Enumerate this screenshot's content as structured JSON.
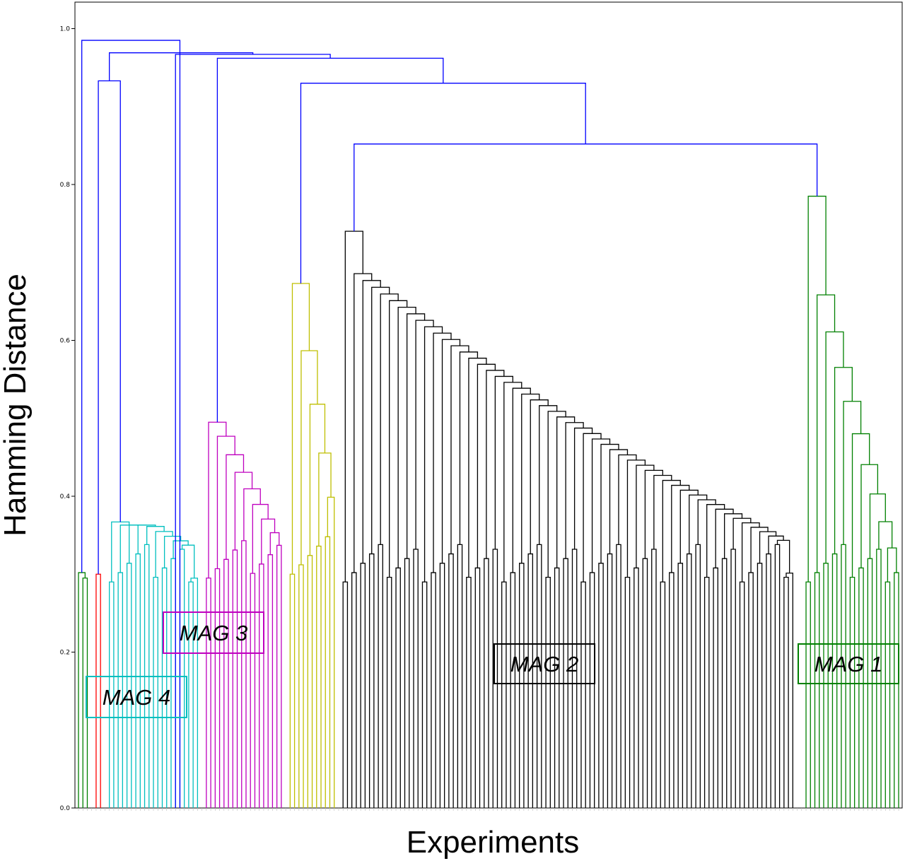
{
  "chart_data": {
    "type": "dendrogram",
    "xlabel": "Experiments",
    "ylabel": "Hamming Distance",
    "ylim": [
      0.0,
      1.04
    ],
    "yticks": [
      "0.0",
      "0.2",
      "0.4",
      "0.6",
      "0.8",
      "1.0"
    ],
    "grid": false,
    "colors": {
      "root": "#0000ff",
      "mag1": "#008000",
      "mag2": "#000000",
      "mag3": "#bf00bf",
      "mag4": "#00bfbf",
      "red": "#ff0000",
      "yellow": "#bfbf00",
      "green_small": "#008000"
    },
    "clusters": [
      {
        "name": "MAG 1",
        "color": "mag1",
        "leaves": 14,
        "height": 0.785
      },
      {
        "name": "MAG 2",
        "color": "mag2",
        "leaves": 59,
        "height": 0.74
      },
      {
        "name": "MAG 3",
        "color": "mag3",
        "leaves": 10,
        "height": 0.495
      },
      {
        "name": "MAG 4",
        "color": "mag4",
        "leaves": 10,
        "height": 0.367
      }
    ],
    "merges": [
      {
        "height": 0.852,
        "joins": "MAG 2 + MAG 1"
      },
      {
        "height": 0.93,
        "joins": "yellow + (MAG 2, MAG 1)"
      },
      {
        "height": 0.962,
        "joins": "MAG 3 + rest"
      },
      {
        "height": 0.967,
        "joins": "top-level"
      },
      {
        "height": 0.969,
        "joins": "top-level"
      },
      {
        "height": 0.985,
        "joins": "root"
      }
    ]
  }
}
